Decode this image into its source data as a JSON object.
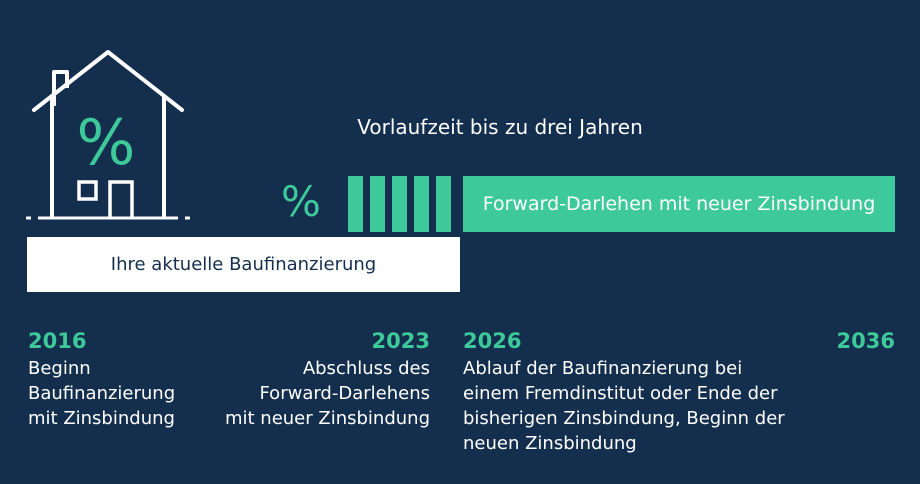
{
  "lead_time_label": "Vorlaufzeit bis zu drei Jahren",
  "percent_symbol": "%",
  "house_percent_symbol": "%",
  "forward_bar_label": "Forward-Darlehen mit neuer Zinsbindung",
  "current_bar_label": "Ihre aktuelle Baufinanzierung",
  "milestones": [
    {
      "year": "2016",
      "lines": [
        "Beginn",
        "Baufinanzierung",
        "mit Zinsbindung"
      ]
    },
    {
      "year": "2023",
      "lines": [
        "Abschluss des",
        "Forward-Darlehens",
        "mit neuer Zinsbindung"
      ]
    },
    {
      "year": "2026",
      "lines": [
        "Ablauf der Baufinanzierung bei",
        "einem Fremdinstitut oder Ende der",
        "bisherigen Zinsbindung, Beginn der",
        "neuen Zinsbindung"
      ]
    },
    {
      "year": "2036",
      "lines": []
    }
  ],
  "colors": {
    "background": "#142f4e",
    "accent": "#3ec99a",
    "text": "#ffffff"
  },
  "icons": {
    "house": "house-percent-icon"
  }
}
